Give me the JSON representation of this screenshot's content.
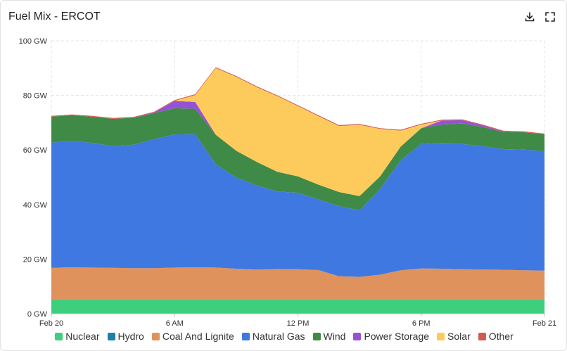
{
  "header": {
    "title": "Fuel Mix - ERCOT",
    "download_icon": "download-icon",
    "fullscreen_icon": "fullscreen-icon"
  },
  "chart_data": {
    "type": "area",
    "stacked": true,
    "title": "Fuel Mix - ERCOT",
    "xlabel": "",
    "ylabel": "",
    "x": [
      0,
      1,
      2,
      3,
      4,
      5,
      6,
      7,
      8,
      9,
      10,
      11,
      12,
      13,
      14,
      15,
      16,
      17,
      18,
      19,
      20,
      21,
      22,
      23,
      24
    ],
    "x_ticks": [
      {
        "x": 0,
        "label": "Feb 20"
      },
      {
        "x": 6,
        "label": "6 AM"
      },
      {
        "x": 12,
        "label": "12 PM"
      },
      {
        "x": 18,
        "label": "6 PM"
      },
      {
        "x": 24,
        "label": "Feb 21"
      }
    ],
    "y_ticks": [
      {
        "y": 0,
        "label": "0 GW"
      },
      {
        "y": 20,
        "label": "20 GW"
      },
      {
        "y": 40,
        "label": "40 GW"
      },
      {
        "y": 60,
        "label": "60 GW"
      },
      {
        "y": 80,
        "label": "80 GW"
      },
      {
        "y": 100,
        "label": "100 GW"
      }
    ],
    "ylim": [
      0,
      100
    ],
    "xlim": [
      0,
      24
    ],
    "grid": true,
    "legend_position": "bottom",
    "series": [
      {
        "name": "Nuclear",
        "color": "#3ecf7e",
        "values": [
          5.1,
          5.1,
          5.1,
          5.1,
          5.1,
          5.1,
          5.1,
          5.1,
          5.1,
          5.1,
          5.1,
          5.1,
          5.1,
          5.1,
          5.1,
          5.1,
          5.1,
          5.1,
          5.1,
          5.1,
          5.1,
          5.1,
          5.1,
          5.1,
          5.1
        ]
      },
      {
        "name": "Hydro",
        "color": "#1f7fa8",
        "values": [
          0.1,
          0.1,
          0.1,
          0.1,
          0.1,
          0.1,
          0.1,
          0.1,
          0.1,
          0.1,
          0.1,
          0.1,
          0.1,
          0.1,
          0.1,
          0.1,
          0.1,
          0.1,
          0.1,
          0.1,
          0.1,
          0.1,
          0.1,
          0.1,
          0.1
        ]
      },
      {
        "name": "Coal And Lignite",
        "color": "#e0925c",
        "values": [
          11.6,
          11.8,
          11.7,
          11.6,
          11.5,
          11.5,
          11.7,
          11.8,
          11.7,
          11.3,
          11.0,
          11.2,
          11.1,
          10.8,
          8.5,
          8.3,
          9.1,
          10.7,
          11.4,
          11.3,
          11.1,
          11.0,
          10.9,
          10.7,
          10.6
        ]
      },
      {
        "name": "Natural Gas",
        "color": "#3f78e0",
        "values": [
          45.9,
          46.3,
          45.7,
          44.6,
          45.2,
          47.3,
          48.8,
          48.8,
          37.9,
          33.4,
          30.8,
          28.4,
          28.0,
          25.9,
          25.7,
          24.4,
          31.4,
          40.3,
          45.6,
          46.1,
          45.9,
          45.2,
          44.2,
          44.2,
          43.8
        ]
      },
      {
        "name": "Wind",
        "color": "#3f8a47",
        "values": [
          9.5,
          9.4,
          9.6,
          10.0,
          9.9,
          9.5,
          9.6,
          9.3,
          10.8,
          9.8,
          8.6,
          7.2,
          6.0,
          5.4,
          5.2,
          5.2,
          4.6,
          5.0,
          5.8,
          6.7,
          7.5,
          7.0,
          6.3,
          6.4,
          6.1
        ]
      },
      {
        "name": "Power Storage",
        "color": "#9652d4",
        "values": [
          0,
          0,
          0,
          0,
          0,
          0.2,
          2.7,
          2.5,
          0,
          0,
          0,
          0,
          0,
          0,
          0,
          0,
          0,
          0,
          0,
          1.5,
          1.2,
          0.6,
          0.2,
          0,
          0
        ]
      },
      {
        "name": "Solar",
        "color": "#fdca5c",
        "values": [
          0,
          0,
          0,
          0,
          0,
          0,
          0,
          2.5,
          24.4,
          27.1,
          27.4,
          27.7,
          25.8,
          25.1,
          24.2,
          26.1,
          17.4,
          5.9,
          1.3,
          0,
          0,
          0,
          0,
          0,
          0
        ]
      },
      {
        "name": "Other",
        "color": "#d45a50",
        "values": [
          0.3,
          0.3,
          0.3,
          0.3,
          0.3,
          0.3,
          0.3,
          0.3,
          0.3,
          0.3,
          0.3,
          0.3,
          0.3,
          0.3,
          0.3,
          0.3,
          0.3,
          0.3,
          0.3,
          0.3,
          0.3,
          0.3,
          0.3,
          0.3,
          0.3
        ]
      }
    ]
  }
}
